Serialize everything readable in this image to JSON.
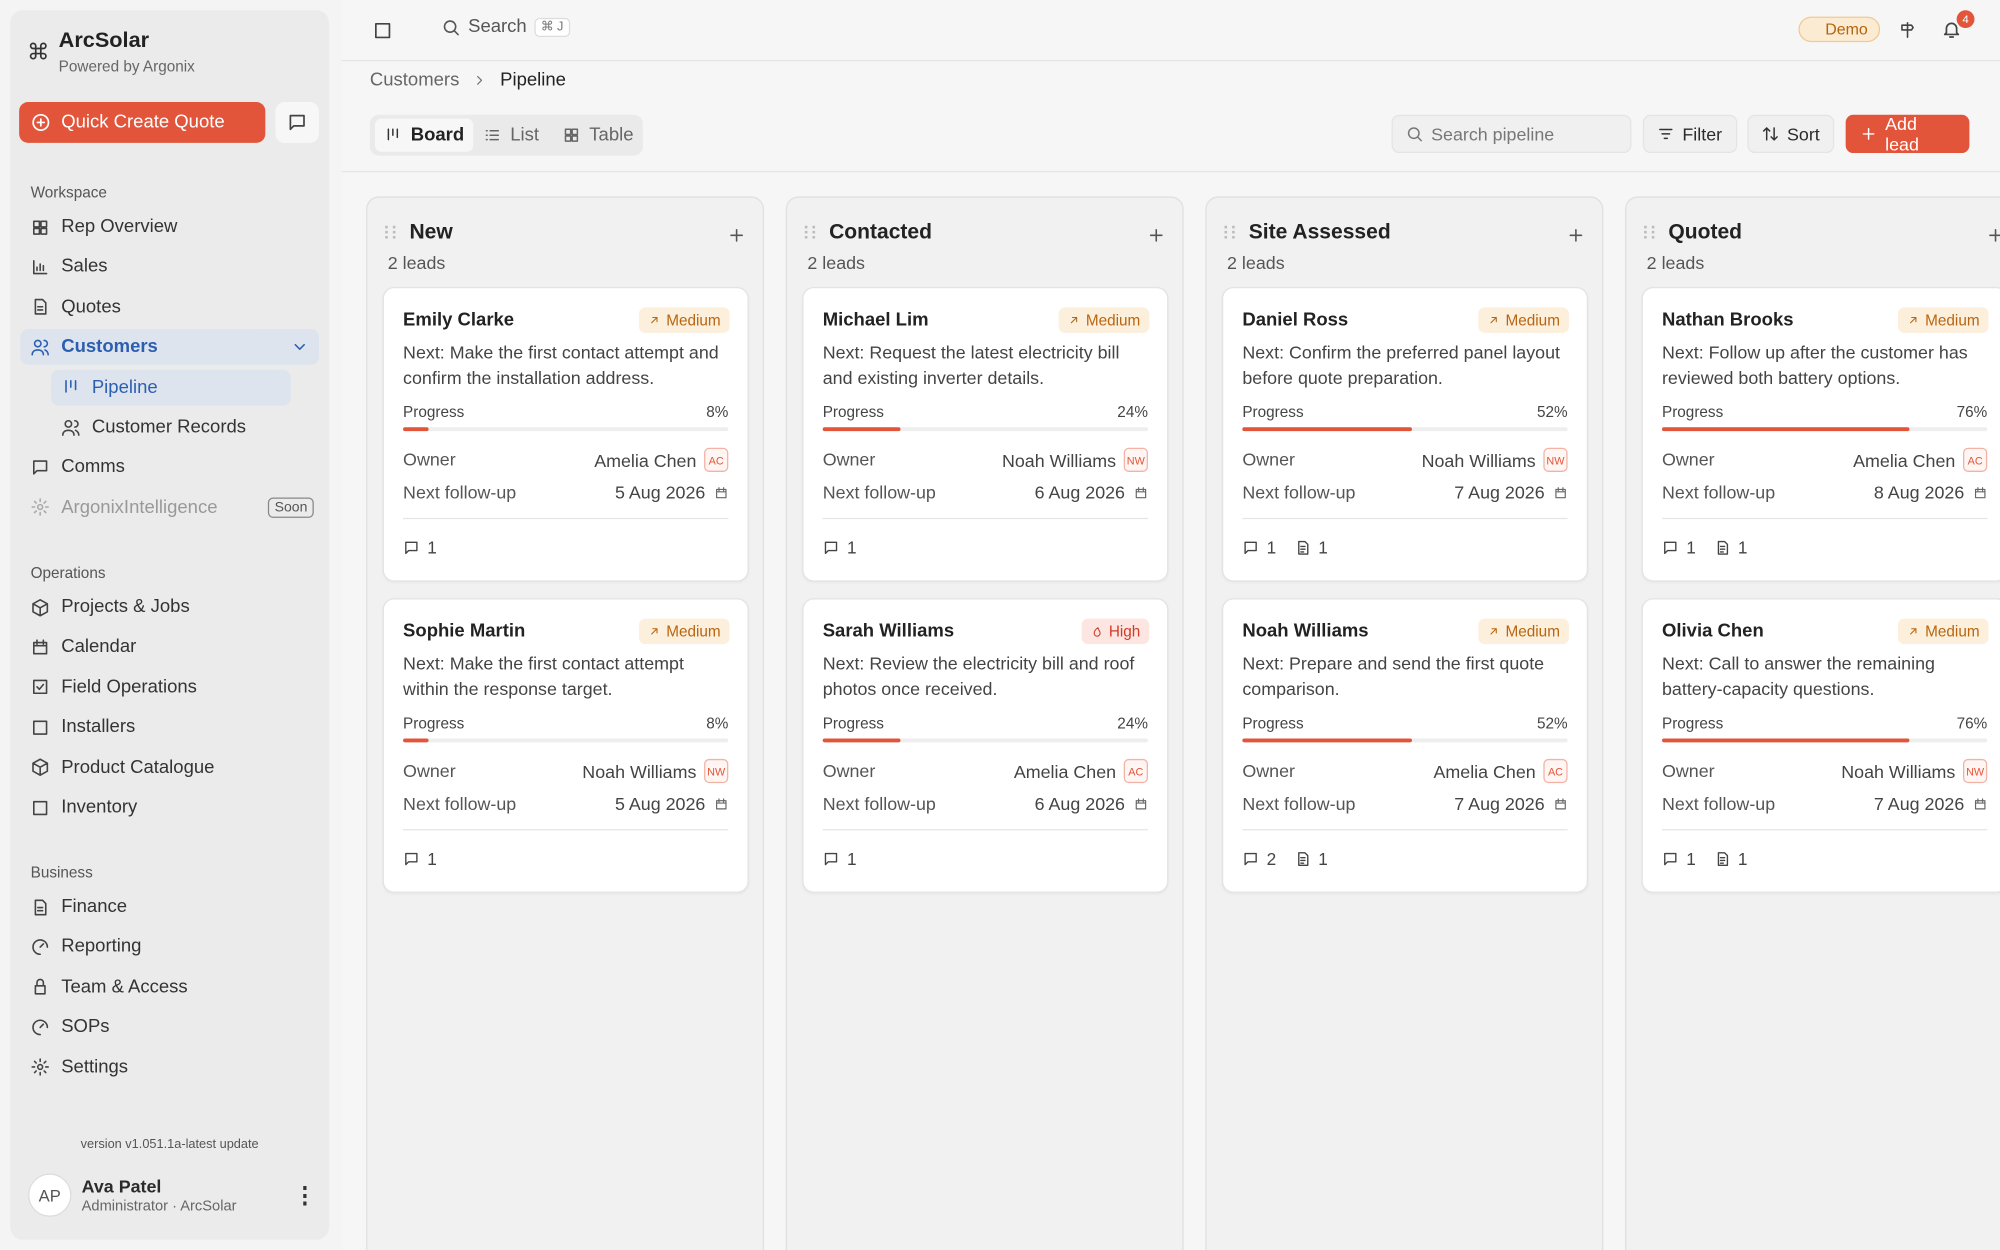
{
  "sidebar": {
    "brand": "ArcSolar",
    "tagline": "Powered by Argonix",
    "quick_create": "Quick Create Quote",
    "sections": [
      {
        "title": "Workspace",
        "items": [
          {
            "label": "Rep Overview"
          },
          {
            "label": "Sales"
          },
          {
            "label": "Quotes"
          },
          {
            "label": "Customers",
            "children": [
              {
                "label": "Pipeline"
              },
              {
                "label": "Customer Records"
              }
            ]
          },
          {
            "label": "Comms"
          },
          {
            "label": "ArgonixIntelligence",
            "badge": "Soon"
          }
        ]
      },
      {
        "title": "Operations",
        "items": [
          {
            "label": "Projects & Jobs"
          },
          {
            "label": "Calendar"
          },
          {
            "label": "Field Operations"
          },
          {
            "label": "Installers"
          },
          {
            "label": "Product Catalogue"
          },
          {
            "label": "Inventory"
          }
        ]
      },
      {
        "title": "Business",
        "items": [
          {
            "label": "Finance"
          },
          {
            "label": "Reporting"
          },
          {
            "label": "Team & Access"
          },
          {
            "label": "SOPs"
          },
          {
            "label": "Settings"
          }
        ]
      }
    ],
    "version": "version v1.051.1a-latest update",
    "user": {
      "initials": "AP",
      "name": "Ava Patel",
      "role": "Administrator · ArcSolar"
    }
  },
  "topbar": {
    "search": "Search",
    "shortcut": "⌘ J",
    "demo": "Demo",
    "notifications": "4"
  },
  "breadcrumb": [
    "Customers",
    "Pipeline"
  ],
  "toolbar": {
    "views": [
      "Board",
      "List",
      "Table"
    ],
    "search_placeholder": "Search pipeline",
    "filter": "Filter",
    "sort": "Sort",
    "add": "Add lead"
  },
  "card_labels": {
    "progress": "Progress",
    "owner": "Owner",
    "followup": "Next follow-up"
  },
  "columns": [
    {
      "title": "New",
      "count": "2 leads",
      "cards": [
        {
          "name": "Emily Clarke",
          "priority": "Medium",
          "next": "Next: Make the first contact attempt and confirm the installation address.",
          "progress": {
            "value": 8,
            "label": "8%"
          },
          "owner": "Amelia Chen",
          "owner_initials": "AC",
          "followup": "5 Aug 2026",
          "comments": "1"
        },
        {
          "name": "Sophie Martin",
          "priority": "Medium",
          "next": "Next: Make the first contact attempt within the response target.",
          "progress": {
            "value": 8,
            "label": "8%"
          },
          "owner": "Noah Williams",
          "owner_initials": "NW",
          "followup": "5 Aug 2026",
          "comments": "1"
        }
      ]
    },
    {
      "title": "Contacted",
      "count": "2 leads",
      "cards": [
        {
          "name": "Michael Lim",
          "priority": "Medium",
          "next": "Next: Request the latest electricity bill and existing inverter details.",
          "progress": {
            "value": 24,
            "label": "24%"
          },
          "owner": "Noah Williams",
          "owner_initials": "NW",
          "followup": "6 Aug 2026",
          "comments": "1"
        },
        {
          "name": "Sarah Williams",
          "priority": "High",
          "next": "Next: Review the electricity bill and roof photos once received.",
          "progress": {
            "value": 24,
            "label": "24%"
          },
          "owner": "Amelia Chen",
          "owner_initials": "AC",
          "followup": "6 Aug 2026",
          "comments": "1"
        }
      ]
    },
    {
      "title": "Site Assessed",
      "count": "2 leads",
      "cards": [
        {
          "name": "Daniel Ross",
          "priority": "Medium",
          "next": "Next: Confirm the preferred panel layout before quote preparation.",
          "progress": {
            "value": 52,
            "label": "52%"
          },
          "owner": "Noah Williams",
          "owner_initials": "NW",
          "followup": "7 Aug 2026",
          "comments": "1",
          "files": "1"
        },
        {
          "name": "Noah Williams",
          "priority": "Medium",
          "next": "Next: Prepare and send the first quote comparison.",
          "progress": {
            "value": 52,
            "label": "52%"
          },
          "owner": "Amelia Chen",
          "owner_initials": "AC",
          "followup": "7 Aug 2026",
          "comments": "2",
          "files": "1"
        }
      ]
    },
    {
      "title": "Quoted",
      "count": "2 leads",
      "cards": [
        {
          "name": "Nathan Brooks",
          "priority": "Medium",
          "next": "Next: Follow up after the customer has reviewed both battery options.",
          "progress": {
            "value": 76,
            "label": "76%"
          },
          "owner": "Amelia Chen",
          "owner_initials": "AC",
          "followup": "8 Aug 2026",
          "comments": "1",
          "files": "1"
        },
        {
          "name": "Olivia Chen",
          "priority": "Medium",
          "next": "Next: Call to answer the remaining battery-capacity questions.",
          "progress": {
            "value": 76,
            "label": "76%"
          },
          "owner": "Noah Williams",
          "owner_initials": "NW",
          "followup": "7 Aug 2026",
          "comments": "1",
          "files": "1"
        }
      ]
    }
  ]
}
